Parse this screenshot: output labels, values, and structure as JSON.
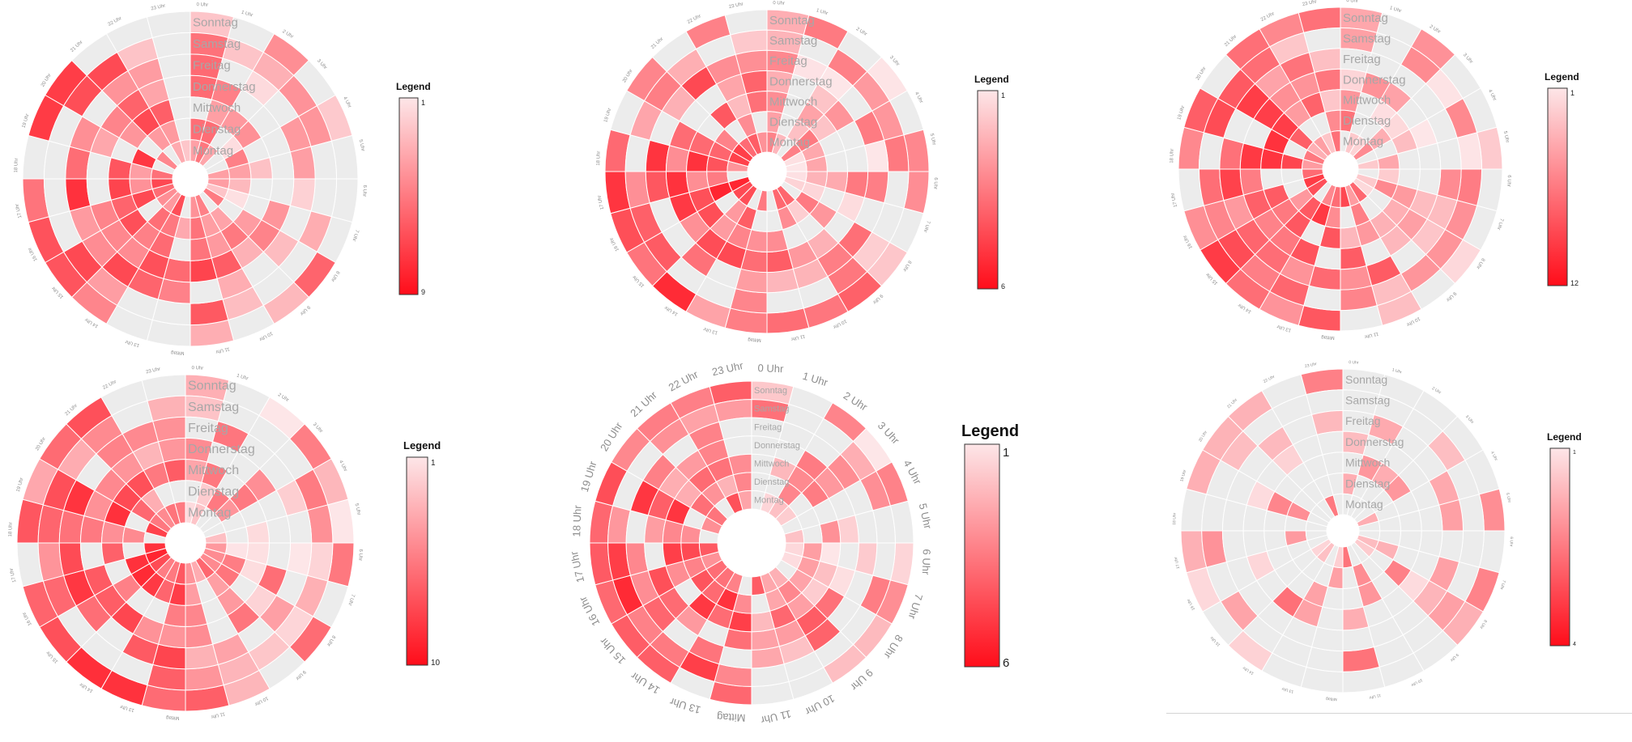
{
  "colors": {
    "empty": "#ececec",
    "low": "#fde6e8",
    "high": "#ff0d1a",
    "grid": "#ffffff"
  },
  "chart_data": [
    {
      "type": "heatmap",
      "layout": "radial",
      "days": [
        "Sonntag",
        "Samstag",
        "Freitag",
        "Donnerstag",
        "Mittwoch",
        "Dienstag",
        "Montag"
      ],
      "hours": [
        "0 Uhr",
        "1 Uhr",
        "2 Uhr",
        "3 Uhr",
        "4 Uhr",
        "5 Uhr",
        "6 Uhr",
        "7 Uhr",
        "8 Uhr",
        "9 Uhr",
        "10 Uhr",
        "11 Uhr",
        "Mittag",
        "13 Uhr",
        "14 Uhr",
        "15 Uhr",
        "16 Uhr",
        "17 Uhr",
        "18 Uhr",
        "19 Uhr",
        "20 Uhr",
        "21 Uhr",
        "22 Uhr",
        "23 Uhr"
      ],
      "legend_title": "Legend",
      "min": 1,
      "max": 9,
      "seed": 11
    },
    {
      "type": "heatmap",
      "layout": "radial",
      "days": [
        "Sonntag",
        "Samstag",
        "Freitag",
        "Donnerstag",
        "Mittwoch",
        "Dienstag",
        "Montag"
      ],
      "hours": [
        "0 Uhr",
        "1 Uhr",
        "2 Uhr",
        "3 Uhr",
        "4 Uhr",
        "5 Uhr",
        "6 Uhr",
        "7 Uhr",
        "8 Uhr",
        "9 Uhr",
        "10 Uhr",
        "11 Uhr",
        "Mittag",
        "13 Uhr",
        "14 Uhr",
        "15 Uhr",
        "16 Uhr",
        "17 Uhr",
        "18 Uhr",
        "19 Uhr",
        "20 Uhr",
        "21 Uhr",
        "22 Uhr",
        "23 Uhr"
      ],
      "legend_title": "Legend",
      "min": 1,
      "max": 6,
      "seed": 23
    },
    {
      "type": "heatmap",
      "layout": "radial",
      "days": [
        "Sonntag",
        "Samstag",
        "Freitag",
        "Donnerstag",
        "Mittwoch",
        "Dienstag",
        "Montag"
      ],
      "hours": [
        "0 Uhr",
        "1 Uhr",
        "2 Uhr",
        "3 Uhr",
        "4 Uhr",
        "5 Uhr",
        "6 Uhr",
        "7 Uhr",
        "8 Uhr",
        "9 Uhr",
        "10 Uhr",
        "11 Uhr",
        "Mittag",
        "13 Uhr",
        "14 Uhr",
        "15 Uhr",
        "16 Uhr",
        "17 Uhr",
        "18 Uhr",
        "19 Uhr",
        "20 Uhr",
        "21 Uhr",
        "22 Uhr",
        "23 Uhr"
      ],
      "legend_title": "Legend",
      "min": 1,
      "max": 12,
      "seed": 37
    },
    {
      "type": "heatmap",
      "layout": "radial",
      "days": [
        "Sonntag",
        "Samstag",
        "Freitag",
        "Donnerstag",
        "Mittwoch",
        "Dienstag",
        "Montag"
      ],
      "hours": [
        "0 Uhr",
        "1 Uhr",
        "2 Uhr",
        "3 Uhr",
        "4 Uhr",
        "5 Uhr",
        "6 Uhr",
        "7 Uhr",
        "8 Uhr",
        "9 Uhr",
        "10 Uhr",
        "11 Uhr",
        "Mittag",
        "13 Uhr",
        "14 Uhr",
        "15 Uhr",
        "16 Uhr",
        "17 Uhr",
        "18 Uhr",
        "19 Uhr",
        "20 Uhr",
        "21 Uhr",
        "22 Uhr",
        "23 Uhr"
      ],
      "legend_title": "Legend",
      "min": 1,
      "max": 10,
      "seed": 53
    },
    {
      "type": "heatmap",
      "layout": "radial",
      "days": [
        "Sonntag",
        "Samstag",
        "Freitag",
        "Donnerstag",
        "Mittwoch",
        "Dienstag",
        "Montag"
      ],
      "hours": [
        "0 Uhr",
        "1 Uhr",
        "2 Uhr",
        "3 Uhr",
        "4 Uhr",
        "5 Uhr",
        "6 Uhr",
        "7 Uhr",
        "8 Uhr",
        "9 Uhr",
        "10 Uhr",
        "11 Uhr",
        "Mittag",
        "13 Uhr",
        "14 Uhr",
        "15 Uhr",
        "16 Uhr",
        "17 Uhr",
        "18 Uhr",
        "19 Uhr",
        "20 Uhr",
        "21 Uhr",
        "22 Uhr",
        "23 Uhr"
      ],
      "legend_title": "Legend",
      "min": 1,
      "max": 6,
      "seed": 71
    },
    {
      "type": "heatmap",
      "layout": "radial",
      "days": [
        "Sonntag",
        "Samstag",
        "Freitag",
        "Donnerstag",
        "Mittwoch",
        "Dienstag",
        "Montag"
      ],
      "hours": [
        "0 Uhr",
        "1 Uhr",
        "2 Uhr",
        "3 Uhr",
        "4 Uhr",
        "5 Uhr",
        "6 Uhr",
        "7 Uhr",
        "8 Uhr",
        "9 Uhr",
        "10 Uhr",
        "11 Uhr",
        "Mittag",
        "13 Uhr",
        "14 Uhr",
        "15 Uhr",
        "16 Uhr",
        "17 Uhr",
        "18 Uhr",
        "19 Uhr",
        "20 Uhr",
        "21 Uhr",
        "22 Uhr",
        "23 Uhr"
      ],
      "legend_title": "Legend",
      "min": 1,
      "max": 4,
      "seed": 89
    }
  ]
}
